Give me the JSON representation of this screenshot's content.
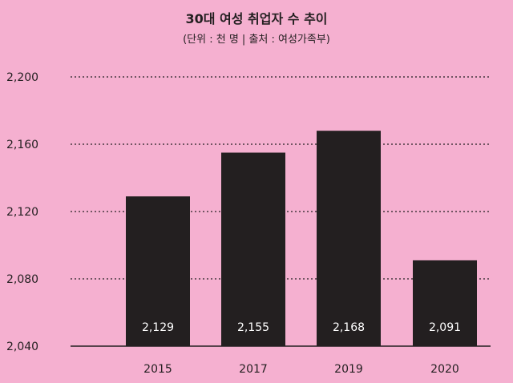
{
  "chart_data": {
    "type": "bar",
    "title": "30대 여성 취업자 수 추이",
    "subtitle": "(단위 : 천 명  |  출처 : 여성가족부)",
    "xlabel": "",
    "ylabel": "",
    "categories": [
      "2015",
      "2017",
      "2019",
      "2020"
    ],
    "values": [
      2129,
      2155,
      2168,
      2091
    ],
    "value_labels": [
      "2,129",
      "2,155",
      "2,168",
      "2,091"
    ],
    "ylim": [
      2040,
      2200
    ],
    "yticks": [
      2040,
      2080,
      2120,
      2160,
      2200
    ],
    "ytick_labels": [
      "2,040",
      "2,080",
      "2,120",
      "2,160",
      "2,200"
    ],
    "grid": "horizontal dotted",
    "legend": "none",
    "colors": {
      "background": "#f5b0d0",
      "bar": "#231f20",
      "grid": "#231f20",
      "data_label": "#ffffff"
    }
  }
}
